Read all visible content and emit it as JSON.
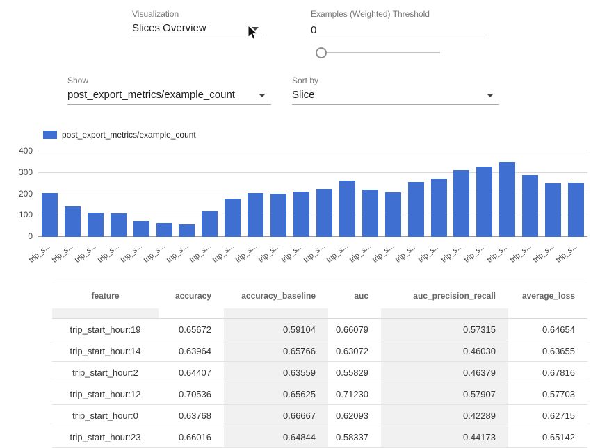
{
  "controls": {
    "visualization": {
      "label": "Visualization",
      "value": "Slices Overview"
    },
    "threshold": {
      "label": "Examples (Weighted) Threshold",
      "value": "0",
      "slider_value": 0
    },
    "show": {
      "label": "Show",
      "value": "post_export_metrics/example_count"
    },
    "sort_by": {
      "label": "Sort by",
      "value": "Slice"
    }
  },
  "chart_data": {
    "type": "bar",
    "title": "",
    "legend": "post_export_metrics/example_count",
    "legend_position": "top-left",
    "series_color": "#3e6fd1",
    "grid": true,
    "xlabel": "",
    "ylabel": "",
    "ylim": [
      0,
      400
    ],
    "yticks": [
      0,
      100,
      200,
      300,
      400
    ],
    "categories": [
      "trip_s...",
      "trip_s...",
      "trip_s...",
      "trip_s...",
      "trip_s...",
      "trip_s...",
      "trip_s...",
      "trip_s...",
      "trip_s...",
      "trip_s...",
      "trip_s...",
      "trip_s...",
      "trip_s...",
      "trip_s...",
      "trip_s...",
      "trip_s...",
      "trip_s...",
      "trip_s...",
      "trip_s...",
      "trip_s...",
      "trip_s...",
      "trip_s...",
      "trip_s...",
      "trip_s..."
    ],
    "values": [
      205,
      143,
      114,
      110,
      75,
      65,
      58,
      120,
      179,
      205,
      202,
      211,
      224,
      263,
      221,
      208,
      257,
      273,
      312,
      328,
      351,
      289,
      250,
      254
    ]
  },
  "table": {
    "columns": [
      "feature",
      "accuracy",
      "accuracy_baseline",
      "auc",
      "auc_precision_recall",
      "average_loss"
    ],
    "rows": [
      [
        "trip_start_hour:19",
        "0.65672",
        "0.59104",
        "0.66079",
        "0.57315",
        "0.64654"
      ],
      [
        "trip_start_hour:14",
        "0.63964",
        "0.65766",
        "0.63072",
        "0.46030",
        "0.63655"
      ],
      [
        "trip_start_hour:2",
        "0.64407",
        "0.63559",
        "0.55829",
        "0.46379",
        "0.67816"
      ],
      [
        "trip_start_hour:12",
        "0.70536",
        "0.65625",
        "0.71230",
        "0.57907",
        "0.57703"
      ],
      [
        "trip_start_hour:0",
        "0.63768",
        "0.66667",
        "0.62093",
        "0.42289",
        "0.62715"
      ],
      [
        "trip_start_hour:23",
        "0.66016",
        "0.64844",
        "0.58337",
        "0.44173",
        "0.65142"
      ]
    ]
  }
}
